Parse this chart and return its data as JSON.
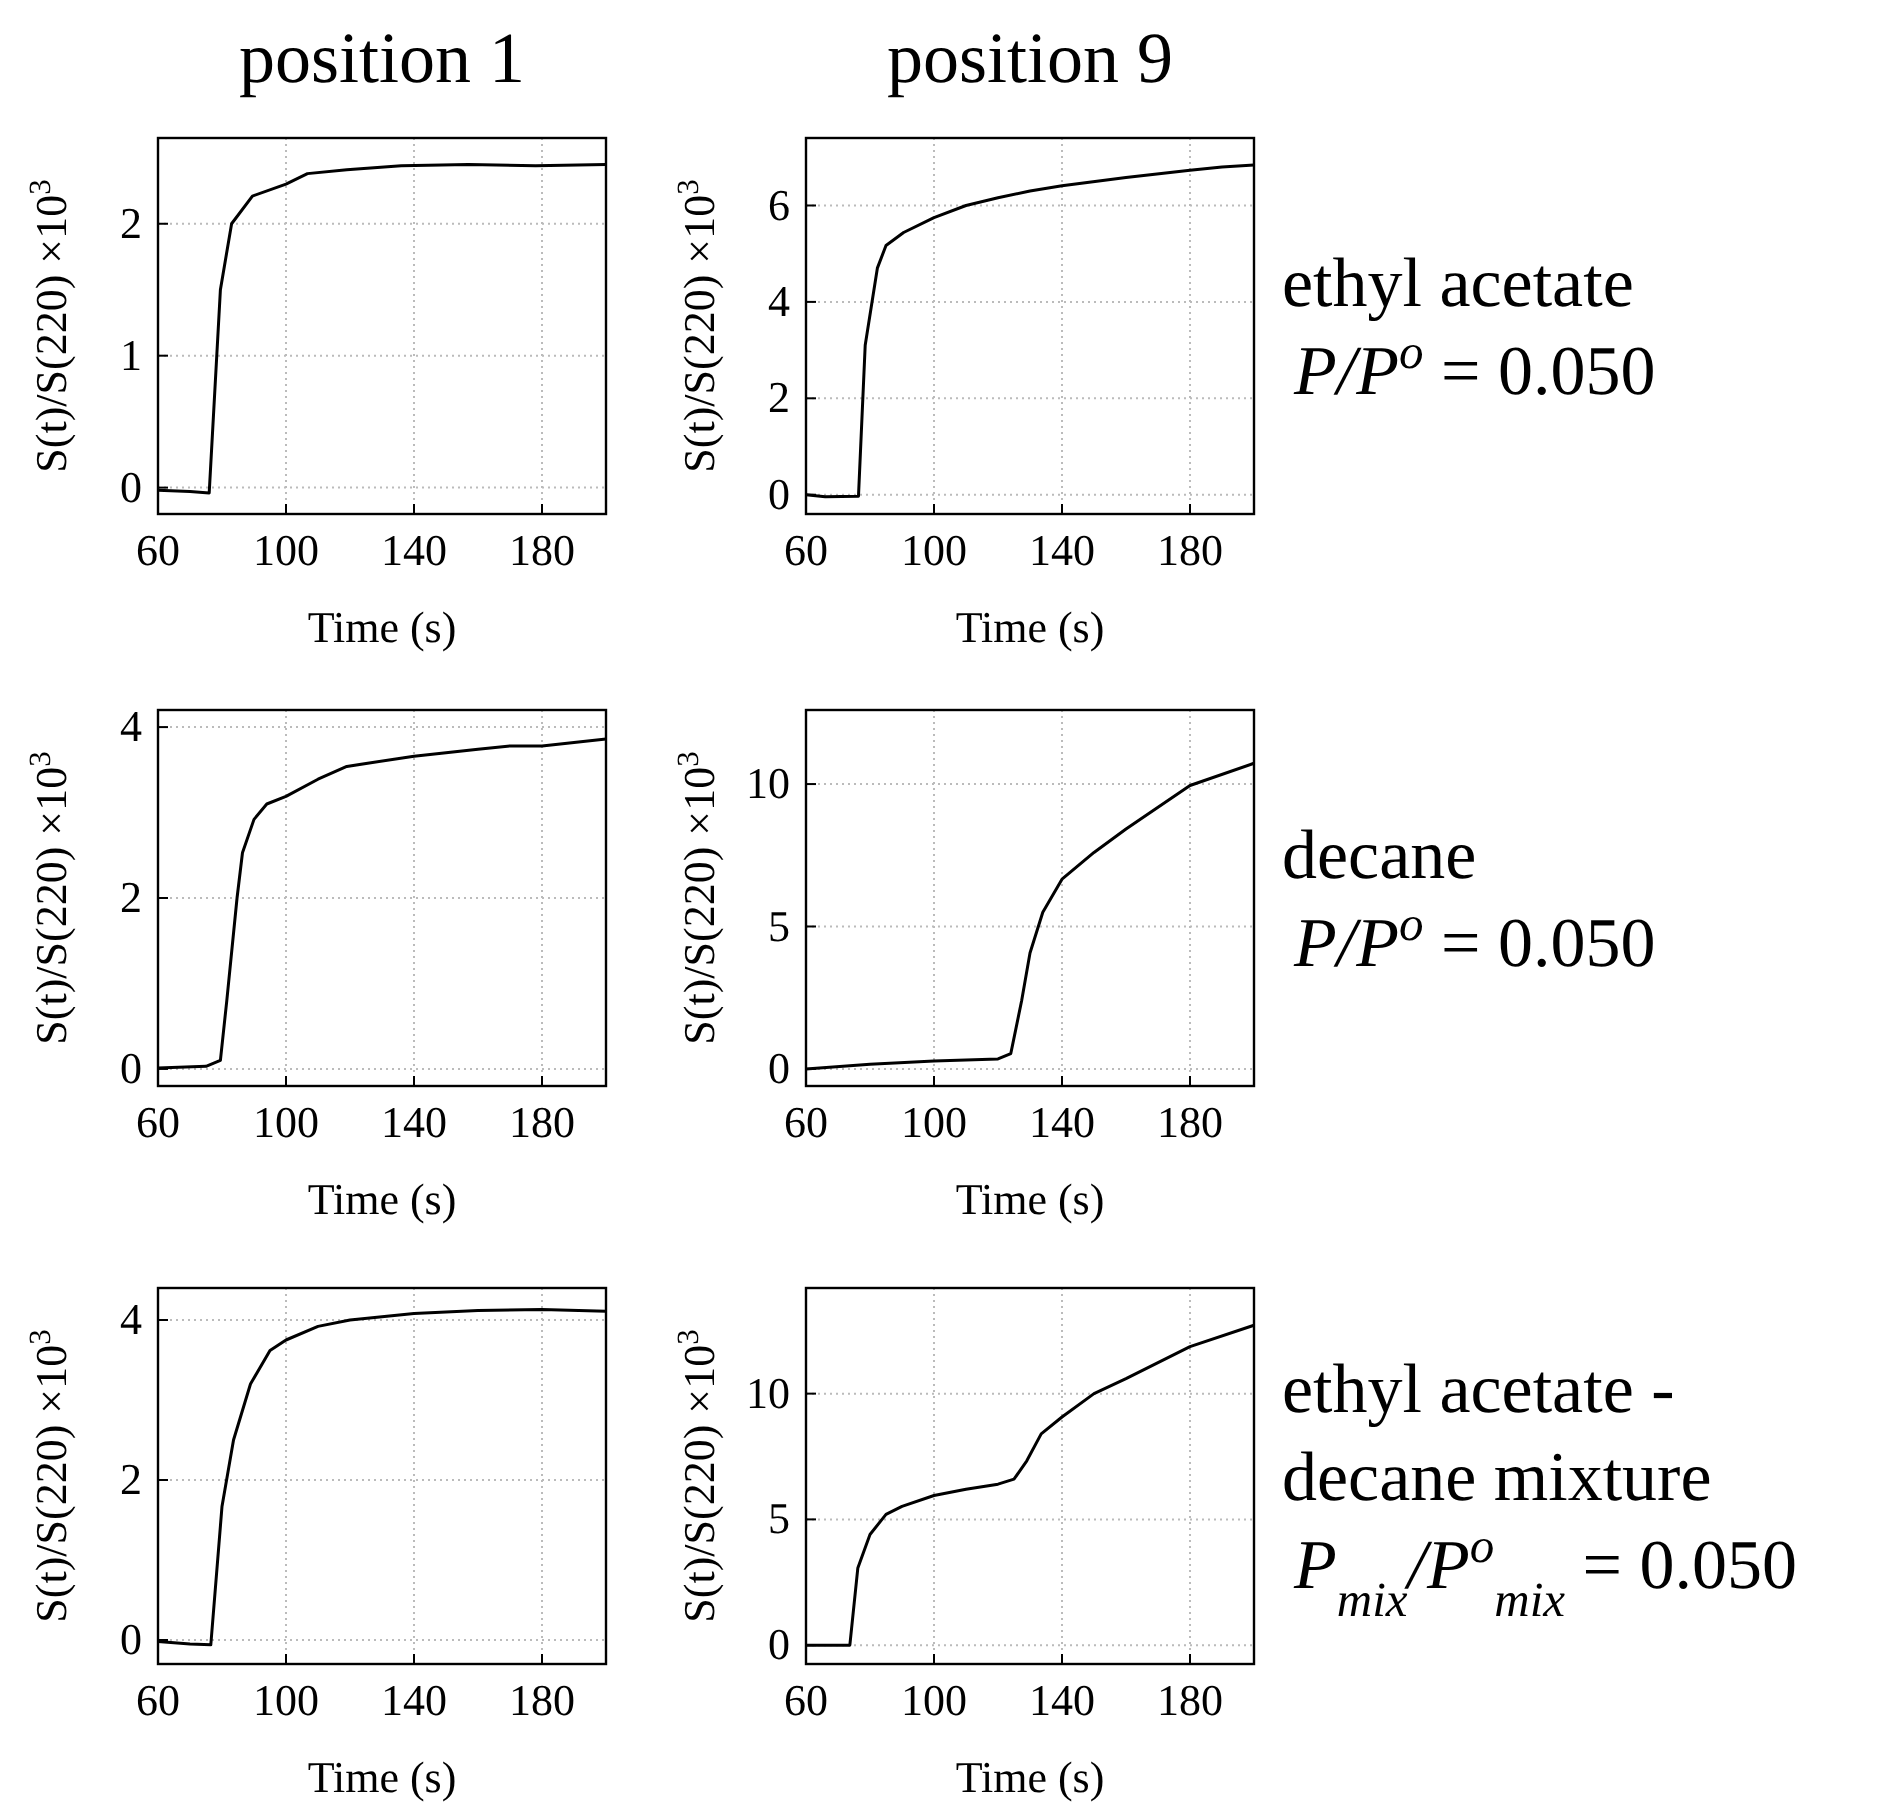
{
  "chart_data": [
    {
      "type": "line",
      "title": "position 1",
      "xlabel": "Time (s)",
      "ylabel": "S(t)/S(220) ×10$^{3}$",
      "color": "#000000",
      "grid": true,
      "xlim": [
        60,
        200
      ],
      "ylim": [
        -0.2,
        2.65
      ],
      "xticks": [
        60,
        100,
        140,
        180
      ],
      "yticks": [
        0,
        1,
        2
      ],
      "x": [
        60,
        70,
        76,
        79.5,
        83,
        89.5,
        100,
        106.7,
        119,
        136,
        157,
        178,
        200
      ],
      "values": [
        -0.02,
        -0.03,
        -0.04,
        1.5,
        2.0,
        2.21,
        2.3,
        2.38,
        2.41,
        2.44,
        2.45,
        2.44,
        2.45
      ]
    },
    {
      "type": "line",
      "title": "position 9",
      "xlabel": "Time (s)",
      "ylabel": "S(t)/S(220) ×10$^{3}$",
      "color": "#000000",
      "grid": true,
      "xlim": [
        60,
        200
      ],
      "ylim": [
        -0.4,
        7.4
      ],
      "xticks": [
        60,
        100,
        140,
        180
      ],
      "yticks": [
        0,
        2,
        4,
        6
      ],
      "annotations": [
        "ethyl acetate",
        "P/P$^{o}$ = 0.050"
      ],
      "x": [
        60,
        66,
        76.4,
        78.5,
        82.3,
        85,
        90.5,
        100,
        110,
        120,
        130,
        140,
        160,
        180,
        190,
        200
      ],
      "values": [
        0,
        -0.04,
        -0.03,
        3.1,
        4.7,
        5.17,
        5.44,
        5.75,
        6.0,
        6.16,
        6.3,
        6.41,
        6.58,
        6.73,
        6.8,
        6.84
      ]
    },
    {
      "type": "line",
      "xlabel": "Time (s)",
      "ylabel": "S(t)/S(220) ×10$^{3}$",
      "color": "#000000",
      "grid": true,
      "xlim": [
        60,
        200
      ],
      "ylim": [
        -0.2,
        4.2
      ],
      "xticks": [
        60,
        100,
        140,
        180
      ],
      "yticks": [
        0,
        2,
        4
      ],
      "x": [
        60,
        75,
        79.5,
        81.5,
        84.7,
        86.4,
        90,
        94,
        100,
        110,
        119,
        140,
        160,
        170,
        180,
        200
      ],
      "values": [
        0.01,
        0.03,
        0.1,
        0.8,
        2.0,
        2.53,
        2.92,
        3.1,
        3.19,
        3.39,
        3.54,
        3.66,
        3.74,
        3.78,
        3.78,
        3.86
      ]
    },
    {
      "type": "line",
      "xlabel": "Time (s)",
      "ylabel": "S(t)/S(220) ×10$^{3}$",
      "color": "#000000",
      "grid": true,
      "xlim": [
        60,
        200
      ],
      "ylim": [
        -0.6,
        12.6
      ],
      "xticks": [
        60,
        100,
        140,
        180
      ],
      "yticks": [
        0,
        5,
        10
      ],
      "annotations": [
        "decane",
        "P/P$^{o}$ = 0.050"
      ],
      "x": [
        60,
        80,
        100,
        120,
        124,
        127.4,
        130,
        134,
        140,
        150,
        160,
        180,
        200
      ],
      "values": [
        0,
        0.16,
        0.28,
        0.35,
        0.54,
        2.4,
        4.07,
        5.5,
        6.66,
        7.6,
        8.42,
        9.95,
        10.73
      ]
    },
    {
      "type": "line",
      "xlabel": "Time (s)",
      "ylabel": "S(t)/S(220) ×10$^{3}$",
      "color": "#000000",
      "grid": true,
      "xlim": [
        60,
        200
      ],
      "ylim": [
        -0.3,
        4.4
      ],
      "xticks": [
        60,
        100,
        140,
        180
      ],
      "yticks": [
        0,
        2,
        4
      ],
      "x": [
        60,
        70,
        76.5,
        80,
        83.6,
        88.9,
        95,
        100,
        110,
        120,
        140,
        160,
        180,
        200
      ],
      "values": [
        -0.02,
        -0.05,
        -0.06,
        1.67,
        2.5,
        3.2,
        3.62,
        3.75,
        3.92,
        4.0,
        4.08,
        4.12,
        4.13,
        4.11
      ]
    },
    {
      "type": "line",
      "xlabel": "Time (s)",
      "ylabel": "S(t)/S(220) ×10$^{3}$",
      "color": "#000000",
      "grid": true,
      "xlim": [
        60,
        200
      ],
      "ylim": [
        -0.75,
        14.2
      ],
      "xticks": [
        60,
        100,
        140,
        180
      ],
      "yticks": [
        0,
        5,
        10
      ],
      "annotations": [
        "ethyl acetate -",
        "decane mixture",
        "P$_{mix}$/P$^{o}$$_{mix}$ = 0.050"
      ],
      "x": [
        60,
        73.7,
        76.2,
        80,
        85,
        90,
        100,
        110,
        120,
        125,
        129,
        133.5,
        140,
        150,
        160,
        180,
        200
      ],
      "values": [
        0,
        0,
        3.07,
        4.4,
        5.2,
        5.52,
        5.95,
        6.2,
        6.4,
        6.6,
        7.33,
        8.4,
        9.07,
        10.0,
        10.6,
        11.87,
        12.72
      ]
    }
  ]
}
